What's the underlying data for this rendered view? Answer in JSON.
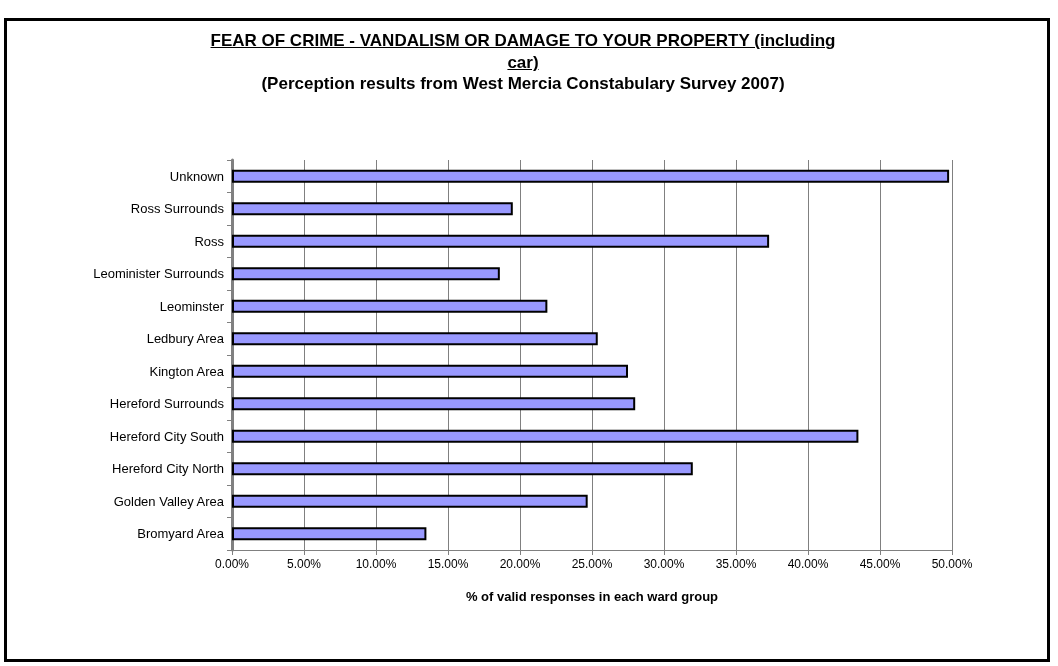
{
  "chart_data": {
    "type": "bar",
    "orientation": "horizontal",
    "title": "FEAR OF CRIME - VANDALISM OR DAMAGE TO YOUR PROPERTY (including car)",
    "subtitle": "(Perception results from West Mercia Constabulary Survey 2007)",
    "xlabel": "% of valid responses in each ward group",
    "categories": [
      "Unknown",
      "Ross Surrounds",
      "Ross",
      "Leominister Surrounds",
      "Leominster",
      "Ledbury Area",
      "Kington Area",
      "Hereford Surrounds",
      "Hereford City South",
      "Hereford City North",
      "Golden Valley Area",
      "Bromyard Area"
    ],
    "values": [
      49.8,
      19.5,
      37.3,
      18.6,
      21.9,
      25.4,
      27.5,
      28.0,
      43.5,
      32.0,
      24.7,
      13.5
    ],
    "color": "#9999ff",
    "xlim": [
      0,
      50
    ],
    "xticks": [
      {
        "value": 0,
        "label": "0.00%"
      },
      {
        "value": 5,
        "label": "5.00%"
      },
      {
        "value": 10,
        "label": "10.00%"
      },
      {
        "value": 15,
        "label": "15.00%"
      },
      {
        "value": 20,
        "label": "20.00%"
      },
      {
        "value": 25,
        "label": "25.00%"
      },
      {
        "value": 30,
        "label": "30.00%"
      },
      {
        "value": 35,
        "label": "35.00%"
      },
      {
        "value": 40,
        "label": "40.00%"
      },
      {
        "value": 45,
        "label": "45.00%"
      },
      {
        "value": 50,
        "label": "50.00%"
      }
    ],
    "grid": "x"
  }
}
